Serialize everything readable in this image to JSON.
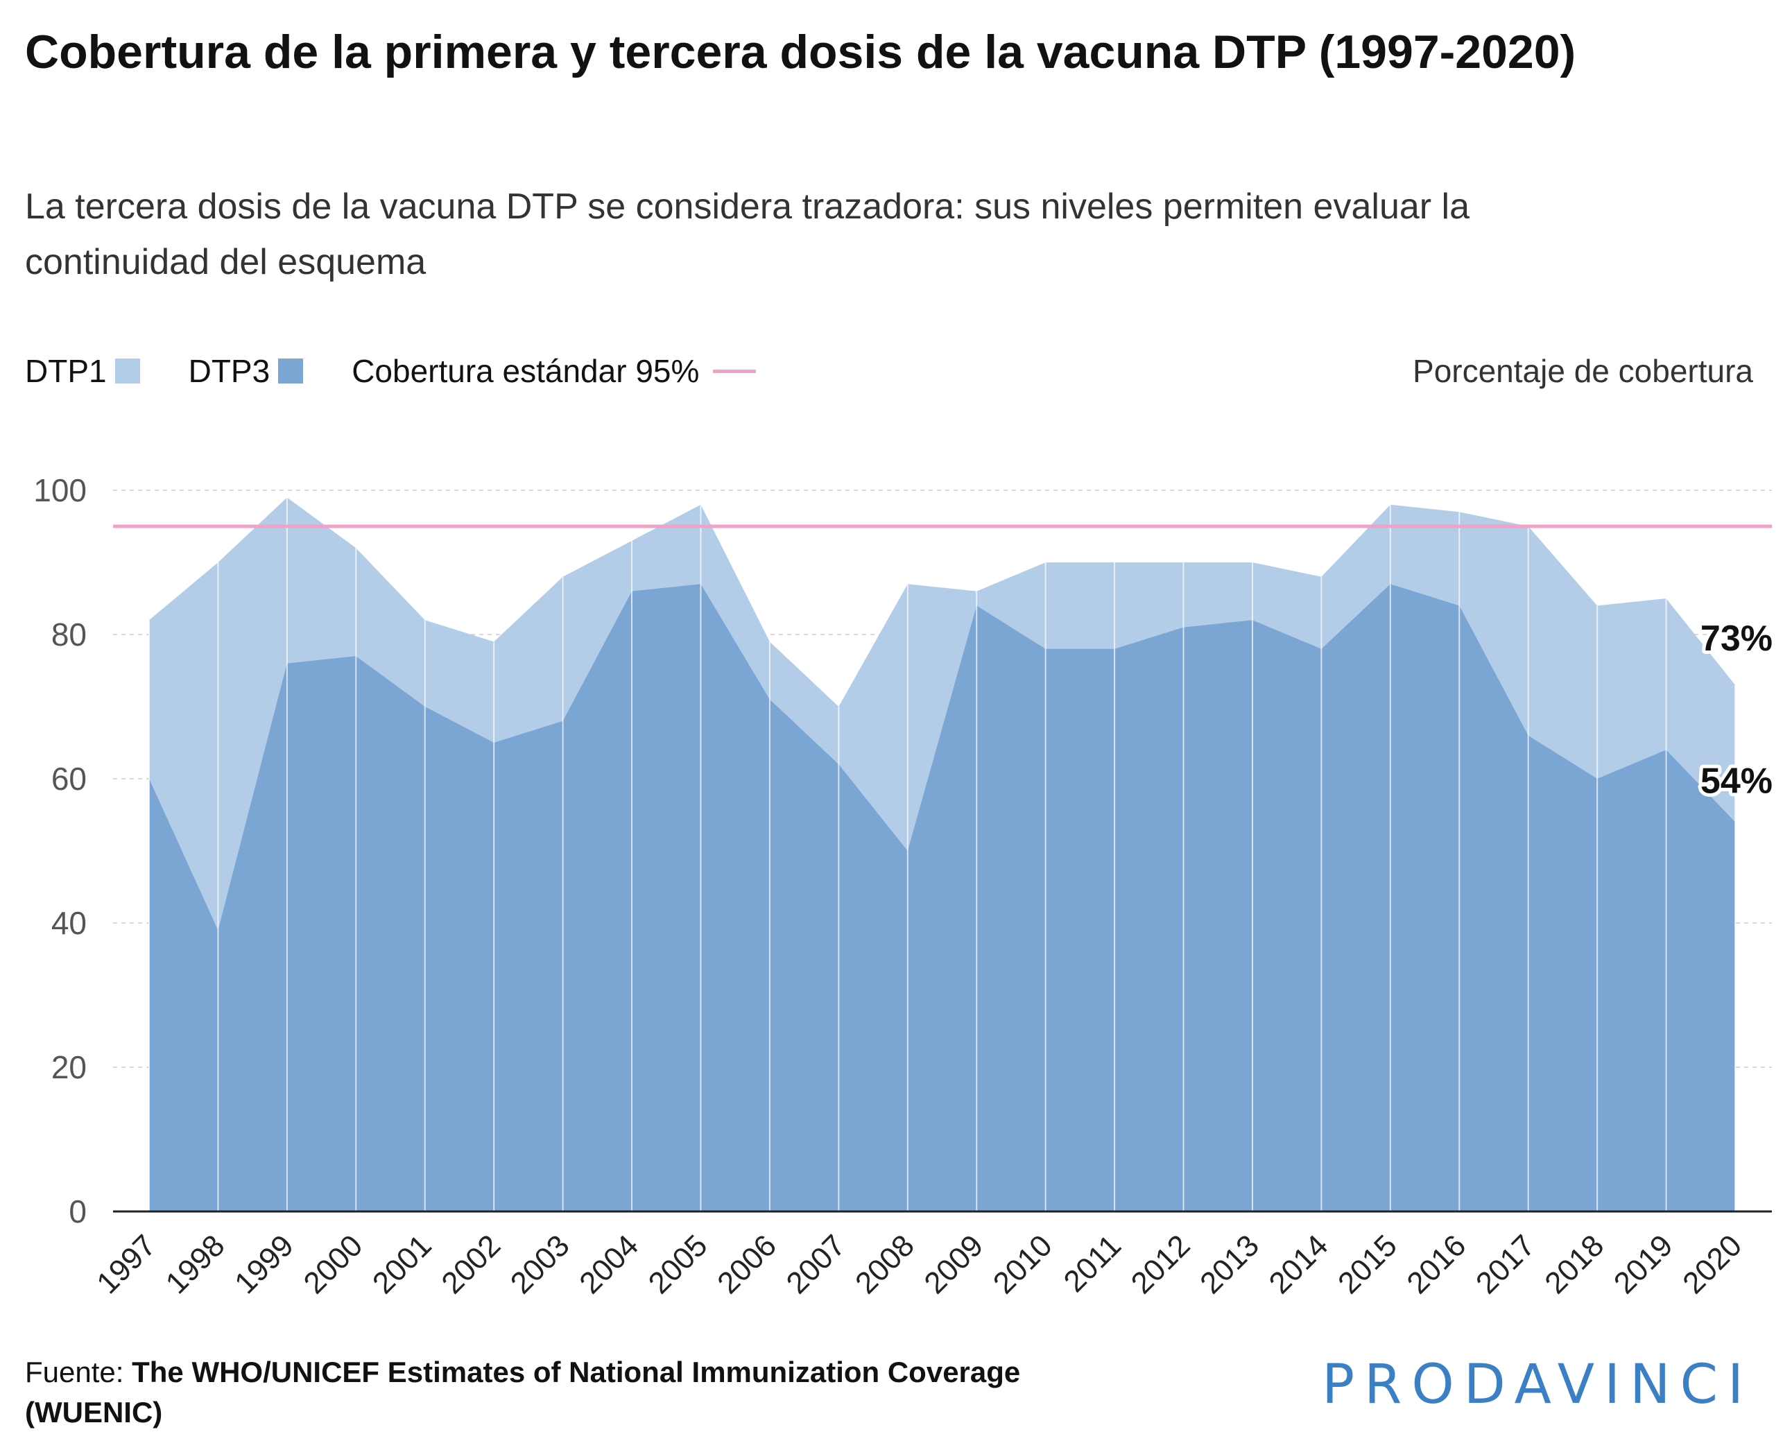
{
  "header": {
    "title": "Cobertura de la primera y tercera dosis de la vacuna DTP (1997-2020)",
    "subtitle": "La tercera dosis de la vacuna DTP se considera trazadora: sus niveles permiten evaluar la continuidad del esquema"
  },
  "legend": {
    "dtp1": "DTP1",
    "dtp3": "DTP3",
    "standard": "Cobertura estándar 95%",
    "unit": "Porcentaje de cobertura"
  },
  "colors": {
    "dtp1": "#b3cde9",
    "dtp3": "#7ba5d2",
    "standard": "#f0a3c6",
    "axis": "#222222",
    "grid": "#d7d7d7"
  },
  "chart_data": {
    "type": "area",
    "x": [
      1997,
      1998,
      1999,
      2000,
      2001,
      2002,
      2003,
      2004,
      2005,
      2006,
      2007,
      2008,
      2009,
      2010,
      2011,
      2012,
      2013,
      2014,
      2015,
      2016,
      2017,
      2018,
      2019,
      2020
    ],
    "series": [
      {
        "name": "DTP1",
        "values": [
          82,
          90,
          99,
          92,
          82,
          79,
          88,
          93,
          98,
          79,
          70,
          87,
          86,
          90,
          90,
          90,
          90,
          88,
          98,
          97,
          95,
          84,
          85,
          73
        ]
      },
      {
        "name": "DTP3",
        "values": [
          60,
          39,
          76,
          77,
          70,
          65,
          68,
          86,
          87,
          71,
          62,
          50,
          84,
          78,
          78,
          81,
          82,
          78,
          87,
          84,
          66,
          60,
          64,
          54
        ]
      }
    ],
    "reference_line": {
      "value": 95
    },
    "end_labels": [
      "73%",
      "54%"
    ],
    "ylim": [
      0,
      100
    ],
    "yticks": [
      0,
      20,
      40,
      60,
      80,
      100
    ],
    "grid": true,
    "legend_position": "top-left"
  },
  "footer": {
    "source_label": "Fuente: ",
    "source_name": "The WHO/UNICEF Estimates of National Immunization Coverage (WUENIC)",
    "logo": "PRODAVINCI"
  }
}
